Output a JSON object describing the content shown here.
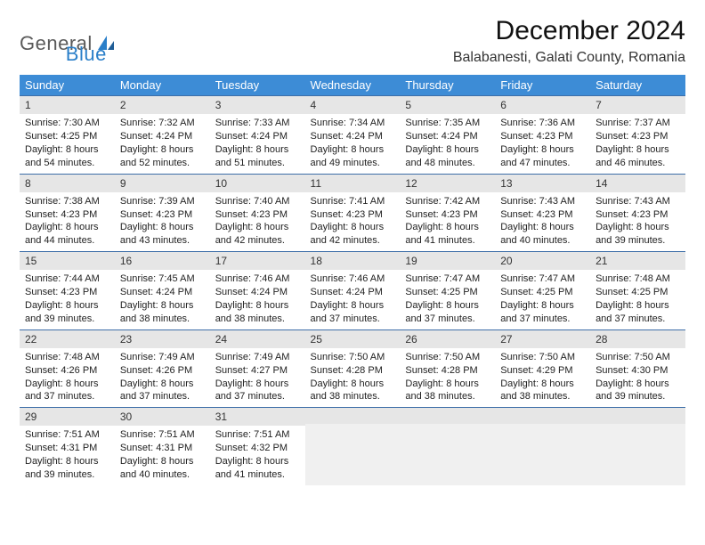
{
  "logo": {
    "part1": "General",
    "part2": "Blue"
  },
  "title": "December 2024",
  "location": "Balabanesti, Galati County, Romania",
  "colors": {
    "header_bg": "#3d8cd6",
    "header_text": "#ffffff",
    "row_border": "#3d6ea8",
    "daynum_bg": "#e6e6e6",
    "logo_gray": "#5a5a5a",
    "logo_blue": "#2a7fc9"
  },
  "weekdays": [
    "Sunday",
    "Monday",
    "Tuesday",
    "Wednesday",
    "Thursday",
    "Friday",
    "Saturday"
  ],
  "weeks": [
    [
      {
        "n": "1",
        "sr": "Sunrise: 7:30 AM",
        "ss": "Sunset: 4:25 PM",
        "dl": "Daylight: 8 hours and 54 minutes."
      },
      {
        "n": "2",
        "sr": "Sunrise: 7:32 AM",
        "ss": "Sunset: 4:24 PM",
        "dl": "Daylight: 8 hours and 52 minutes."
      },
      {
        "n": "3",
        "sr": "Sunrise: 7:33 AM",
        "ss": "Sunset: 4:24 PM",
        "dl": "Daylight: 8 hours and 51 minutes."
      },
      {
        "n": "4",
        "sr": "Sunrise: 7:34 AM",
        "ss": "Sunset: 4:24 PM",
        "dl": "Daylight: 8 hours and 49 minutes."
      },
      {
        "n": "5",
        "sr": "Sunrise: 7:35 AM",
        "ss": "Sunset: 4:24 PM",
        "dl": "Daylight: 8 hours and 48 minutes."
      },
      {
        "n": "6",
        "sr": "Sunrise: 7:36 AM",
        "ss": "Sunset: 4:23 PM",
        "dl": "Daylight: 8 hours and 47 minutes."
      },
      {
        "n": "7",
        "sr": "Sunrise: 7:37 AM",
        "ss": "Sunset: 4:23 PM",
        "dl": "Daylight: 8 hours and 46 minutes."
      }
    ],
    [
      {
        "n": "8",
        "sr": "Sunrise: 7:38 AM",
        "ss": "Sunset: 4:23 PM",
        "dl": "Daylight: 8 hours and 44 minutes."
      },
      {
        "n": "9",
        "sr": "Sunrise: 7:39 AM",
        "ss": "Sunset: 4:23 PM",
        "dl": "Daylight: 8 hours and 43 minutes."
      },
      {
        "n": "10",
        "sr": "Sunrise: 7:40 AM",
        "ss": "Sunset: 4:23 PM",
        "dl": "Daylight: 8 hours and 42 minutes."
      },
      {
        "n": "11",
        "sr": "Sunrise: 7:41 AM",
        "ss": "Sunset: 4:23 PM",
        "dl": "Daylight: 8 hours and 42 minutes."
      },
      {
        "n": "12",
        "sr": "Sunrise: 7:42 AM",
        "ss": "Sunset: 4:23 PM",
        "dl": "Daylight: 8 hours and 41 minutes."
      },
      {
        "n": "13",
        "sr": "Sunrise: 7:43 AM",
        "ss": "Sunset: 4:23 PM",
        "dl": "Daylight: 8 hours and 40 minutes."
      },
      {
        "n": "14",
        "sr": "Sunrise: 7:43 AM",
        "ss": "Sunset: 4:23 PM",
        "dl": "Daylight: 8 hours and 39 minutes."
      }
    ],
    [
      {
        "n": "15",
        "sr": "Sunrise: 7:44 AM",
        "ss": "Sunset: 4:23 PM",
        "dl": "Daylight: 8 hours and 39 minutes."
      },
      {
        "n": "16",
        "sr": "Sunrise: 7:45 AM",
        "ss": "Sunset: 4:24 PM",
        "dl": "Daylight: 8 hours and 38 minutes."
      },
      {
        "n": "17",
        "sr": "Sunrise: 7:46 AM",
        "ss": "Sunset: 4:24 PM",
        "dl": "Daylight: 8 hours and 38 minutes."
      },
      {
        "n": "18",
        "sr": "Sunrise: 7:46 AM",
        "ss": "Sunset: 4:24 PM",
        "dl": "Daylight: 8 hours and 37 minutes."
      },
      {
        "n": "19",
        "sr": "Sunrise: 7:47 AM",
        "ss": "Sunset: 4:25 PM",
        "dl": "Daylight: 8 hours and 37 minutes."
      },
      {
        "n": "20",
        "sr": "Sunrise: 7:47 AM",
        "ss": "Sunset: 4:25 PM",
        "dl": "Daylight: 8 hours and 37 minutes."
      },
      {
        "n": "21",
        "sr": "Sunrise: 7:48 AM",
        "ss": "Sunset: 4:25 PM",
        "dl": "Daylight: 8 hours and 37 minutes."
      }
    ],
    [
      {
        "n": "22",
        "sr": "Sunrise: 7:48 AM",
        "ss": "Sunset: 4:26 PM",
        "dl": "Daylight: 8 hours and 37 minutes."
      },
      {
        "n": "23",
        "sr": "Sunrise: 7:49 AM",
        "ss": "Sunset: 4:26 PM",
        "dl": "Daylight: 8 hours and 37 minutes."
      },
      {
        "n": "24",
        "sr": "Sunrise: 7:49 AM",
        "ss": "Sunset: 4:27 PM",
        "dl": "Daylight: 8 hours and 37 minutes."
      },
      {
        "n": "25",
        "sr": "Sunrise: 7:50 AM",
        "ss": "Sunset: 4:28 PM",
        "dl": "Daylight: 8 hours and 38 minutes."
      },
      {
        "n": "26",
        "sr": "Sunrise: 7:50 AM",
        "ss": "Sunset: 4:28 PM",
        "dl": "Daylight: 8 hours and 38 minutes."
      },
      {
        "n": "27",
        "sr": "Sunrise: 7:50 AM",
        "ss": "Sunset: 4:29 PM",
        "dl": "Daylight: 8 hours and 38 minutes."
      },
      {
        "n": "28",
        "sr": "Sunrise: 7:50 AM",
        "ss": "Sunset: 4:30 PM",
        "dl": "Daylight: 8 hours and 39 minutes."
      }
    ],
    [
      {
        "n": "29",
        "sr": "Sunrise: 7:51 AM",
        "ss": "Sunset: 4:31 PM",
        "dl": "Daylight: 8 hours and 39 minutes."
      },
      {
        "n": "30",
        "sr": "Sunrise: 7:51 AM",
        "ss": "Sunset: 4:31 PM",
        "dl": "Daylight: 8 hours and 40 minutes."
      },
      {
        "n": "31",
        "sr": "Sunrise: 7:51 AM",
        "ss": "Sunset: 4:32 PM",
        "dl": "Daylight: 8 hours and 41 minutes."
      },
      {
        "empty": true
      },
      {
        "empty": true
      },
      {
        "empty": true
      },
      {
        "empty": true
      }
    ]
  ]
}
